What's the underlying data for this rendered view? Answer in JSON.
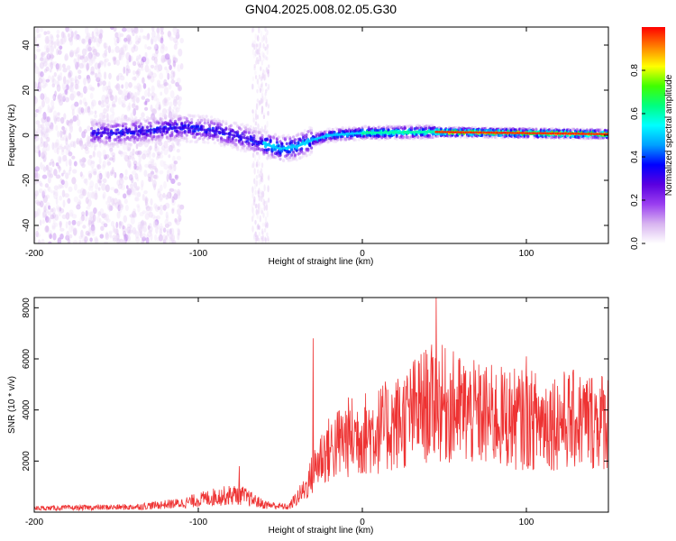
{
  "title": "GN04.2025.008.02.05.G30",
  "chart_data": [
    {
      "type": "heatmap",
      "xlabel": "Height of straight line (km)",
      "ylabel": "Frequency (Hz)",
      "xlim": [
        -200,
        150
      ],
      "ylim": [
        -48,
        48
      ],
      "xticks": [
        -200,
        -100,
        0,
        100
      ],
      "yticks": [
        -40,
        -20,
        0,
        20,
        40
      ],
      "colorbar": {
        "label": "Normalized spectral amplitude",
        "range": [
          0,
          1
        ],
        "ticks": [
          0.0,
          0.2,
          0.4,
          0.6,
          0.8
        ],
        "colormap": [
          "#ffffff",
          "#d8b4f0",
          "#9a3ef0",
          "#5a00e0",
          "#0000ff",
          "#00a0ff",
          "#00ffff",
          "#00ff80",
          "#40ff00",
          "#ffff00",
          "#ff8000",
          "#ff0000"
        ]
      },
      "ridge": [
        {
          "x": -150,
          "f": 1.0
        },
        {
          "x": -110,
          "f": 3.5
        },
        {
          "x": -90,
          "f": 2.0
        },
        {
          "x": -70,
          "f": -1.5
        },
        {
          "x": -50,
          "f": -6.0
        },
        {
          "x": -40,
          "f": -5.0
        },
        {
          "x": -30,
          "f": -2.0
        },
        {
          "x": -20,
          "f": 0.0
        },
        {
          "x": 0,
          "f": 1.0
        },
        {
          "x": 40,
          "f": 1.5
        },
        {
          "x": 150,
          "f": 0.5
        }
      ],
      "noise_region_x": [
        -200,
        -110
      ],
      "noise_column_x": -62
    },
    {
      "type": "line",
      "xlabel": "Height of straight line (km)",
      "ylabel": "SNR (10 * v/v)",
      "xlim": [
        -200,
        150
      ],
      "ylim": [
        0,
        8400
      ],
      "xticks": [
        -200,
        -100,
        0,
        100
      ],
      "yticks": [
        2000,
        4000,
        6000,
        8000
      ],
      "color": "#ee3333",
      "envelope": [
        {
          "x": -200,
          "y": 150
        },
        {
          "x": -140,
          "y": 200
        },
        {
          "x": -110,
          "y": 350
        },
        {
          "x": -90,
          "y": 600
        },
        {
          "x": -75,
          "y": 700
        },
        {
          "x": -60,
          "y": 300
        },
        {
          "x": -45,
          "y": 200
        },
        {
          "x": -35,
          "y": 900
        },
        {
          "x": -25,
          "y": 2200
        },
        {
          "x": -10,
          "y": 2900
        },
        {
          "x": 10,
          "y": 3200
        },
        {
          "x": 25,
          "y": 3600
        },
        {
          "x": 35,
          "y": 4100
        },
        {
          "x": 45,
          "y": 4300
        },
        {
          "x": 55,
          "y": 4100
        },
        {
          "x": 70,
          "y": 3800
        },
        {
          "x": 100,
          "y": 3600
        },
        {
          "x": 150,
          "y": 3600
        }
      ],
      "peaks": [
        {
          "x": -75,
          "y": 1800
        },
        {
          "x": -30,
          "y": 6800
        },
        {
          "x": 45,
          "y": 8400
        },
        {
          "x": 100,
          "y": 6100
        }
      ]
    }
  ]
}
